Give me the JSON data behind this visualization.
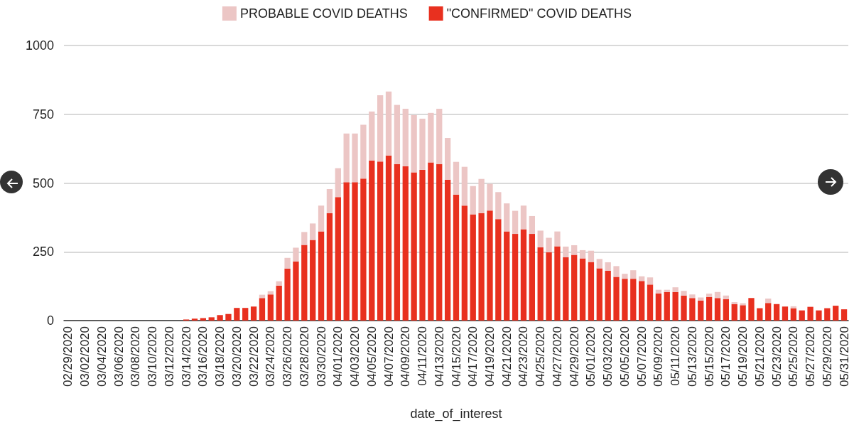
{
  "chart_data": {
    "type": "bar",
    "stacked": true,
    "categories": [
      "02/29/2020",
      null,
      "03/02/2020",
      null,
      "03/04/2020",
      null,
      "03/06/2020",
      null,
      "03/08/2020",
      null,
      "03/10/2020",
      null,
      "03/12/2020",
      null,
      "03/14/2020",
      null,
      "03/16/2020",
      null,
      "03/18/2020",
      null,
      "03/20/2020",
      null,
      "03/22/2020",
      null,
      "03/24/2020",
      null,
      "03/26/2020",
      null,
      "03/28/2020",
      null,
      "03/30/2020",
      null,
      "04/01/2020",
      null,
      "04/03/2020",
      null,
      "04/05/2020",
      null,
      "04/07/2020",
      null,
      "04/09/2020",
      null,
      "04/11/2020",
      null,
      "04/13/2020",
      null,
      "04/15/2020",
      null,
      "04/17/2020",
      null,
      "04/19/2020",
      null,
      "04/21/2020",
      null,
      "04/23/2020",
      null,
      "04/25/2020",
      null,
      "04/27/2020",
      null,
      "04/29/2020",
      null,
      "05/01/2020",
      null,
      "05/03/2020",
      null,
      "05/05/2020",
      null,
      "05/07/2020",
      null,
      "05/09/2020",
      null,
      "05/11/2020",
      null,
      "05/13/2020",
      null,
      "05/15/2020",
      null,
      "05/17/2020",
      null,
      "05/19/2020",
      null,
      "05/21/2020",
      null,
      "05/23/2020",
      null,
      "05/25/2020",
      null,
      "05/27/2020",
      null,
      "05/29/2020",
      null,
      "05/31/2020"
    ],
    "series": [
      {
        "name": "\"CONFIRMED\" COVID DEATHS",
        "color": "#e8301f",
        "values": [
          0,
          0,
          0,
          0,
          0,
          0,
          0,
          0,
          0,
          0,
          0,
          0,
          0,
          0,
          4,
          7,
          9,
          12,
          20,
          24,
          46,
          46,
          51,
          82,
          95,
          127,
          189,
          215,
          275,
          293,
          324,
          391,
          449,
          503,
          503,
          516,
          582,
          578,
          600,
          569,
          561,
          539,
          548,
          575,
          569,
          512,
          458,
          418,
          386,
          391,
          400,
          369,
          324,
          315,
          332,
          315,
          266,
          248,
          270,
          230,
          239,
          226,
          213,
          190,
          181,
          159,
          152,
          152,
          144,
          131,
          99,
          104,
          104,
          91,
          82,
          73,
          86,
          82,
          78,
          60,
          56,
          82,
          45,
          64,
          60,
          51,
          45,
          37,
          50,
          37,
          45,
          54,
          41
        ]
      },
      {
        "name": "PROBABLE COVID DEATHS",
        "color": "#ecc6c5",
        "values": [
          0,
          0,
          0,
          0,
          0,
          0,
          0,
          0,
          0,
          0,
          0,
          0,
          0,
          0,
          0,
          0,
          0,
          0,
          0,
          0,
          0,
          0,
          0,
          12,
          12,
          16,
          39,
          50,
          47,
          60,
          94,
          87,
          105,
          177,
          177,
          196,
          178,
          241,
          233,
          215,
          209,
          208,
          186,
          180,
          201,
          152,
          119,
          141,
          103,
          124,
          97,
          98,
          102,
          84,
          86,
          65,
          61,
          53,
          54,
          39,
          35,
          30,
          41,
          34,
          31,
          39,
          18,
          31,
          17,
          26,
          13,
          8,
          17,
          17,
          13,
          11,
          12,
          22,
          13,
          7,
          7,
          0,
          0,
          16,
          null,
          null,
          7,
          0,
          0,
          0,
          0,
          0,
          0
        ]
      }
    ],
    "xlabel": "date_of_interest",
    "ylim": [
      0,
      1000
    ],
    "yticks": [
      0,
      250,
      500,
      750,
      1000
    ],
    "grid": "y",
    "legend": "top"
  }
}
